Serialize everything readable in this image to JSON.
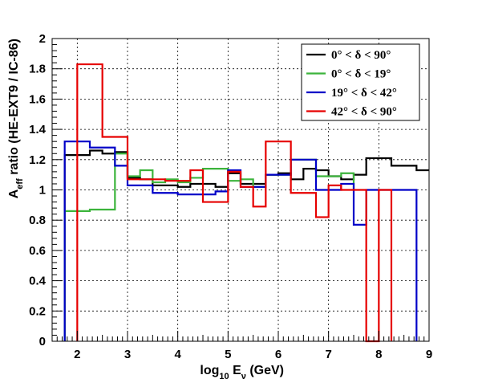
{
  "chart_data": {
    "type": "line",
    "title": "",
    "xlabel": "log₁₀ Eν (GeV)",
    "xlabel_parts": {
      "pre": "log",
      "sub": "10",
      "mid": " E",
      "sub2": "ν",
      "post": " (GeV)"
    },
    "ylabel": "Aeff ratio (HE-EXT9 / IC-86)",
    "ylabel_parts": {
      "pre": "A",
      "sub": "eff",
      "post": " ratio (HE-EXT9 / IC-86)"
    },
    "xlim": [
      1.5,
      9.0
    ],
    "ylim": [
      0,
      2
    ],
    "x_ticks": [
      2,
      3,
      4,
      5,
      6,
      7,
      8,
      9
    ],
    "y_ticks": [
      0,
      0.2,
      0.4,
      0.6,
      0.8,
      1,
      1.2,
      1.4,
      1.6,
      1.8,
      2
    ],
    "x_tick_labels": [
      "2",
      "3",
      "4",
      "5",
      "6",
      "7",
      "8",
      "9"
    ],
    "y_tick_labels": [
      "0",
      "0.2",
      "0.4",
      "0.6",
      "0.8",
      "1",
      "1.2",
      "1.4",
      "1.6",
      "1.8",
      "2"
    ],
    "grid": true,
    "legend_position": "top-right",
    "series": [
      {
        "name": "0° < δ < 90°",
        "color": "#000000",
        "edges": [
          1.75,
          2.0,
          2.25,
          2.5,
          2.75,
          3.0,
          3.25,
          3.5,
          3.75,
          4.0,
          4.25,
          4.5,
          4.75,
          5.0,
          5.25,
          5.5,
          5.75,
          6.0,
          6.25,
          6.5,
          6.75,
          7.0,
          7.25,
          7.5,
          7.75,
          8.0,
          8.25,
          8.5,
          8.75,
          9.0
        ],
        "values": [
          1.23,
          1.23,
          1.26,
          1.24,
          1.25,
          1.08,
          1.07,
          1.03,
          1.03,
          1.02,
          1.04,
          1.04,
          1.02,
          1.11,
          1.04,
          1.04,
          1.1,
          1.11,
          1.07,
          1.14,
          1.13,
          1.09,
          1.07,
          1.1,
          1.21,
          1.21,
          1.16,
          1.16,
          1.13
        ]
      },
      {
        "name": "0° < δ < 19°",
        "color": "#3cb43c",
        "edges": [
          1.75,
          2.0,
          2.25,
          2.5,
          2.75,
          3.0,
          3.25,
          3.5,
          3.75,
          4.0,
          4.25,
          4.5,
          4.75,
          5.0,
          5.25,
          5.5,
          5.75,
          6.0,
          6.25,
          6.5,
          6.75,
          7.0,
          7.25,
          7.5
        ],
        "values": [
          0.86,
          0.86,
          0.87,
          0.87,
          1.24,
          1.09,
          1.13,
          1.05,
          1.07,
          1.05,
          1.08,
          1.14,
          1.14,
          1.06,
          1.07,
          1.02,
          1.1,
          1.1,
          1.2,
          1.2,
          1.09,
          1.09,
          1.11,
          1.0
        ]
      },
      {
        "name": "19° < δ < 42°",
        "color": "#0000c8",
        "edges": [
          1.75,
          2.0,
          2.25,
          2.5,
          2.75,
          3.0,
          3.25,
          3.5,
          3.75,
          4.0,
          4.25,
          4.5,
          4.75,
          5.0,
          5.25,
          5.5,
          5.75,
          6.0,
          6.25,
          6.5,
          6.75,
          7.0,
          7.25,
          7.5,
          7.75,
          8.0,
          8.25,
          8.5,
          8.75
        ],
        "values": [
          1.32,
          1.32,
          1.28,
          1.28,
          1.16,
          1.03,
          1.03,
          0.98,
          0.98,
          0.97,
          0.97,
          0.97,
          0.99,
          1.13,
          1.02,
          1.02,
          1.1,
          1.1,
          1.2,
          1.2,
          1.0,
          1.0,
          1.04,
          0.77,
          1.0,
          1.0,
          1.0,
          1.0,
          0
        ]
      },
      {
        "name": "42° < δ < 90°",
        "color": "#e60000",
        "edges": [
          2.0,
          2.25,
          2.5,
          2.75,
          3.0,
          3.25,
          3.5,
          3.75,
          4.0,
          4.25,
          4.5,
          4.75,
          5.0,
          5.25,
          5.5,
          5.75,
          6.0,
          6.25,
          6.5,
          6.75,
          7.0,
          7.25,
          7.5,
          7.75,
          8.0,
          8.25
        ],
        "values": [
          1.83,
          1.83,
          1.35,
          1.35,
          1.07,
          1.07,
          1.07,
          1.06,
          1.06,
          1.13,
          0.92,
          0.92,
          1.12,
          1.02,
          0.89,
          1.32,
          1.32,
          0.98,
          0.98,
          0.82,
          1.03,
          1.0,
          1.0,
          0,
          1.0,
          0
        ]
      }
    ]
  }
}
